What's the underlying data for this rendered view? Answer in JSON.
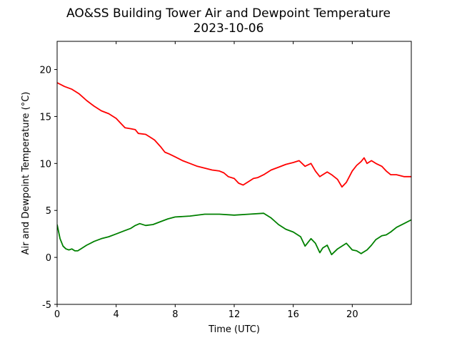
{
  "chart_data": {
    "type": "line",
    "title": "AO&SS Building Tower Air and Dewpoint Temperature",
    "subtitle": "2023-10-06",
    "xlabel": "Time (UTC)",
    "ylabel": "Air and Dewpoint Temperature (°C)",
    "xlim": [
      0,
      24
    ],
    "ylim": [
      -5,
      23
    ],
    "xticks": [
      0,
      4,
      8,
      12,
      16,
      20
    ],
    "yticks": [
      -5,
      0,
      5,
      10,
      15,
      20
    ],
    "grid": false,
    "series": [
      {
        "color": "#ff0000",
        "points": [
          [
            0,
            18.6
          ],
          [
            0.5,
            18.2
          ],
          [
            1,
            17.9
          ],
          [
            1.5,
            17.4
          ],
          [
            2,
            16.7
          ],
          [
            2.5,
            16.1
          ],
          [
            3,
            15.6
          ],
          [
            3.5,
            15.3
          ],
          [
            4,
            14.8
          ],
          [
            4.3,
            14.3
          ],
          [
            4.6,
            13.8
          ],
          [
            5,
            13.7
          ],
          [
            5.3,
            13.6
          ],
          [
            5.5,
            13.2
          ],
          [
            6,
            13.1
          ],
          [
            6.3,
            12.8
          ],
          [
            6.6,
            12.5
          ],
          [
            7,
            11.8
          ],
          [
            7.3,
            11.2
          ],
          [
            7.6,
            11.0
          ],
          [
            8,
            10.7
          ],
          [
            8.5,
            10.3
          ],
          [
            9,
            10.0
          ],
          [
            9.5,
            9.7
          ],
          [
            10,
            9.5
          ],
          [
            10.5,
            9.3
          ],
          [
            11,
            9.2
          ],
          [
            11.3,
            9.0
          ],
          [
            11.6,
            8.6
          ],
          [
            12,
            8.4
          ],
          [
            12.3,
            7.9
          ],
          [
            12.6,
            7.7
          ],
          [
            13,
            8.1
          ],
          [
            13.3,
            8.4
          ],
          [
            13.6,
            8.5
          ],
          [
            14,
            8.8
          ],
          [
            14.5,
            9.3
          ],
          [
            15,
            9.6
          ],
          [
            15.5,
            9.9
          ],
          [
            16,
            10.1
          ],
          [
            16.4,
            10.3
          ],
          [
            16.8,
            9.7
          ],
          [
            17.2,
            10.0
          ],
          [
            17.5,
            9.2
          ],
          [
            17.8,
            8.6
          ],
          [
            18,
            8.8
          ],
          [
            18.3,
            9.1
          ],
          [
            18.6,
            8.8
          ],
          [
            19,
            8.3
          ],
          [
            19.3,
            7.5
          ],
          [
            19.6,
            8.0
          ],
          [
            20,
            9.2
          ],
          [
            20.3,
            9.8
          ],
          [
            20.6,
            10.2
          ],
          [
            20.8,
            10.6
          ],
          [
            21,
            10.0
          ],
          [
            21.3,
            10.3
          ],
          [
            21.6,
            10.0
          ],
          [
            22,
            9.7
          ],
          [
            22.3,
            9.2
          ],
          [
            22.6,
            8.8
          ],
          [
            23,
            8.8
          ],
          [
            23.5,
            8.6
          ],
          [
            24,
            8.6
          ]
        ]
      },
      {
        "color": "#008000",
        "points": [
          [
            0,
            3.5
          ],
          [
            0.2,
            2.0
          ],
          [
            0.4,
            1.2
          ],
          [
            0.6,
            0.9
          ],
          [
            0.8,
            0.8
          ],
          [
            1,
            0.9
          ],
          [
            1.2,
            0.7
          ],
          [
            1.4,
            0.7
          ],
          [
            1.6,
            0.9
          ],
          [
            2,
            1.3
          ],
          [
            2.5,
            1.7
          ],
          [
            3,
            2.0
          ],
          [
            3.5,
            2.2
          ],
          [
            4,
            2.5
          ],
          [
            4.5,
            2.8
          ],
          [
            5,
            3.1
          ],
          [
            5.3,
            3.4
          ],
          [
            5.6,
            3.6
          ],
          [
            6,
            3.4
          ],
          [
            6.5,
            3.5
          ],
          [
            7,
            3.8
          ],
          [
            7.5,
            4.1
          ],
          [
            8,
            4.3
          ],
          [
            9,
            4.4
          ],
          [
            10,
            4.6
          ],
          [
            11,
            4.6
          ],
          [
            12,
            4.5
          ],
          [
            13,
            4.6
          ],
          [
            14,
            4.7
          ],
          [
            14.5,
            4.2
          ],
          [
            15,
            3.5
          ],
          [
            15.5,
            3.0
          ],
          [
            16,
            2.7
          ],
          [
            16.5,
            2.2
          ],
          [
            16.8,
            1.2
          ],
          [
            17.2,
            2.0
          ],
          [
            17.5,
            1.5
          ],
          [
            17.8,
            0.5
          ],
          [
            18,
            1.0
          ],
          [
            18.3,
            1.3
          ],
          [
            18.6,
            0.3
          ],
          [
            19,
            0.9
          ],
          [
            19.3,
            1.2
          ],
          [
            19.6,
            1.5
          ],
          [
            20,
            0.8
          ],
          [
            20.3,
            0.7
          ],
          [
            20.6,
            0.4
          ],
          [
            21,
            0.8
          ],
          [
            21.3,
            1.3
          ],
          [
            21.6,
            1.9
          ],
          [
            22,
            2.3
          ],
          [
            22.3,
            2.4
          ],
          [
            22.6,
            2.7
          ],
          [
            23,
            3.2
          ],
          [
            23.5,
            3.6
          ],
          [
            24,
            4.0
          ]
        ]
      }
    ]
  }
}
